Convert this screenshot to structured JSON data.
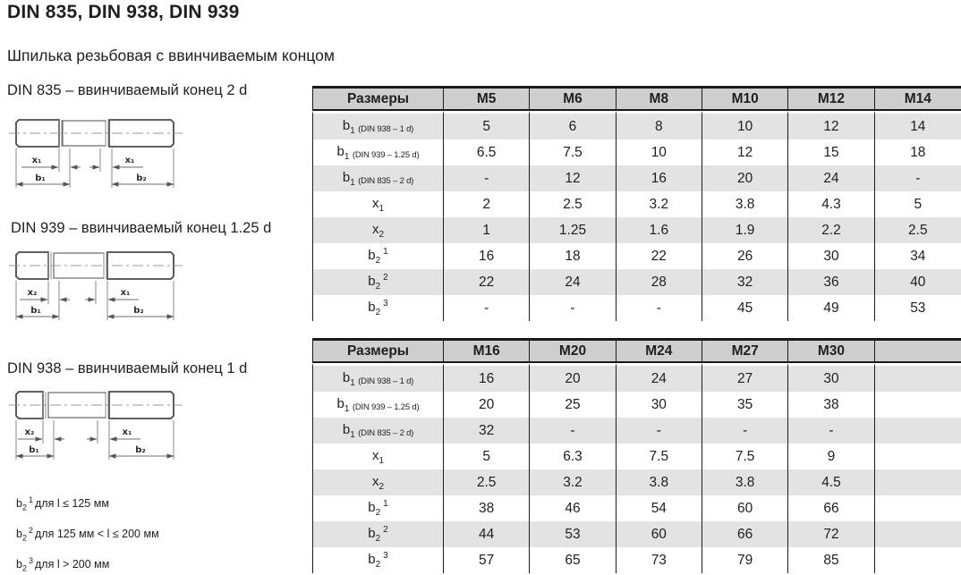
{
  "page": {
    "title": "DIN 835, DIN 938, DIN 939",
    "subtitle": "Шпилька резьбовая с ввинчиваемым концом"
  },
  "colors": {
    "header_bg": "#cfcfcf",
    "stripe_bg": "#e3e3e3",
    "border": "#1c1c1c",
    "drawing_line": "#4a4a4a"
  },
  "drawings": [
    {
      "caption": "DIN 835 – ввинчиваемый конец 2 d",
      "left_x": "x₁",
      "right_x": "x₁",
      "left_b": "b₁",
      "right_b": "b₂"
    },
    {
      "caption": "DIN 939 – ввинчиваемый конец 1.25 d",
      "left_x": "x₂",
      "right_x": "x₁",
      "left_b": "b₁",
      "right_b": "b₂"
    },
    {
      "caption": "DIN 938 – ввинчиваемый конец 1 d",
      "left_x": "x₂",
      "right_x": "x₁",
      "left_b": "b₁",
      "right_b": "b₂"
    }
  ],
  "footnotes": [
    {
      "base": "b",
      "sub": "2",
      "sup": "1",
      "text": "для l ≤ 125 мм"
    },
    {
      "base": "b",
      "sub": "2",
      "sup": "2",
      "text": "для 125 мм < l ≤ 200 мм"
    },
    {
      "base": "b",
      "sub": "2",
      "sup": "3",
      "text": "для l > 200 мм"
    }
  ],
  "tables": [
    {
      "header": [
        "Размеры",
        "M5",
        "M6",
        "M8",
        "M10",
        "M12",
        "M14"
      ],
      "rows": [
        {
          "label": {
            "base": "b",
            "sub": "1",
            "note": "(DIN 938 – 1 d)"
          },
          "values": [
            "5",
            "6",
            "8",
            "10",
            "12",
            "14"
          ]
        },
        {
          "label": {
            "base": "b",
            "sub": "1",
            "note": "(DIN 939 – 1.25 d)"
          },
          "values": [
            "6.5",
            "7.5",
            "10",
            "12",
            "15",
            "18"
          ]
        },
        {
          "label": {
            "base": "b",
            "sub": "1",
            "note": "(DIN 835 – 2 d)"
          },
          "values": [
            "-",
            "12",
            "16",
            "20",
            "24",
            "-"
          ]
        },
        {
          "label": {
            "base": "x",
            "sub": "1"
          },
          "values": [
            "2",
            "2.5",
            "3.2",
            "3.8",
            "4.3",
            "5"
          ]
        },
        {
          "label": {
            "base": "x",
            "sub": "2"
          },
          "values": [
            "1",
            "1.25",
            "1.6",
            "1.9",
            "2.2",
            "2.5"
          ]
        },
        {
          "label": {
            "base": "b",
            "sub": "2",
            "sup": "1"
          },
          "values": [
            "16",
            "18",
            "22",
            "26",
            "30",
            "34"
          ]
        },
        {
          "label": {
            "base": "b",
            "sub": "2",
            "sup": "2"
          },
          "values": [
            "22",
            "24",
            "28",
            "32",
            "36",
            "40"
          ]
        },
        {
          "label": {
            "base": "b",
            "sub": "2",
            "sup": "3"
          },
          "values": [
            "-",
            "-",
            "-",
            "45",
            "49",
            "53"
          ]
        }
      ]
    },
    {
      "header": [
        "Размеры",
        "M16",
        "M20",
        "M24",
        "M27",
        "M30",
        ""
      ],
      "rows": [
        {
          "label": {
            "base": "b",
            "sub": "1",
            "note": "(DIN 938 – 1 d)"
          },
          "values": [
            "16",
            "20",
            "24",
            "27",
            "30",
            ""
          ]
        },
        {
          "label": {
            "base": "b",
            "sub": "1",
            "note": "(DIN 939 – 1.25 d)"
          },
          "values": [
            "20",
            "25",
            "30",
            "35",
            "38",
            ""
          ]
        },
        {
          "label": {
            "base": "b",
            "sub": "1",
            "note": "(DIN 835 – 2 d)"
          },
          "values": [
            "32",
            "-",
            "-",
            "-",
            "-",
            ""
          ]
        },
        {
          "label": {
            "base": "x",
            "sub": "1"
          },
          "values": [
            "5",
            "6.3",
            "7.5",
            "7.5",
            "9",
            ""
          ]
        },
        {
          "label": {
            "base": "x",
            "sub": "2"
          },
          "values": [
            "2.5",
            "3.2",
            "3.8",
            "3.8",
            "4.5",
            ""
          ]
        },
        {
          "label": {
            "base": "b",
            "sub": "2",
            "sup": "1"
          },
          "values": [
            "38",
            "46",
            "54",
            "60",
            "66",
            ""
          ]
        },
        {
          "label": {
            "base": "b",
            "sub": "2",
            "sup": "2"
          },
          "values": [
            "44",
            "53",
            "60",
            "66",
            "72",
            ""
          ]
        },
        {
          "label": {
            "base": "b",
            "sub": "2",
            "sup": "3"
          },
          "values": [
            "57",
            "65",
            "73",
            "79",
            "85",
            ""
          ]
        }
      ]
    }
  ]
}
